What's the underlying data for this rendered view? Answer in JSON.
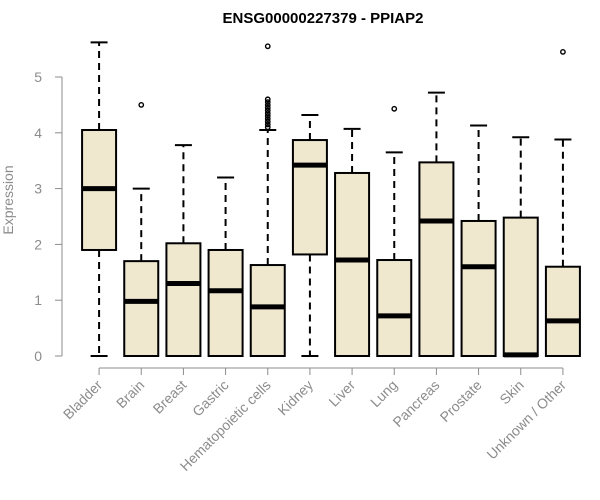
{
  "chart_data": {
    "type": "box",
    "title": "ENSG00000227379 - PPIAP2",
    "xlabel": "",
    "ylabel": "Expression",
    "ylim": [
      0,
      5.7
    ],
    "yticks": [
      0,
      1,
      2,
      3,
      4,
      5
    ],
    "grid": false,
    "categories": [
      "Bladder",
      "Brain",
      "Breast",
      "Gastric",
      "Hematopoietic cells",
      "Kidney",
      "Liver",
      "Lung",
      "Pancreas",
      "Prostate",
      "Skin",
      "Unknown / Other"
    ],
    "boxes": [
      {
        "min": 0,
        "q1": 1.9,
        "median": 3.0,
        "q3": 4.05,
        "max": 5.62,
        "outliers": []
      },
      {
        "min": 0,
        "q1": 0,
        "median": 0.98,
        "q3": 1.7,
        "max": 3.0,
        "outliers": [
          4.5
        ]
      },
      {
        "min": 0,
        "q1": 0,
        "median": 1.3,
        "q3": 2.02,
        "max": 3.78,
        "outliers": []
      },
      {
        "min": 0,
        "q1": 0,
        "median": 1.17,
        "q3": 1.9,
        "max": 3.2,
        "outliers": []
      },
      {
        "min": 0,
        "q1": 0,
        "median": 0.88,
        "q3": 1.63,
        "max": 4.05,
        "outliers": [
          4.1,
          4.15,
          4.2,
          4.25,
          4.3,
          4.35,
          4.4,
          4.45,
          4.5,
          4.55,
          4.6,
          5.55
        ]
      },
      {
        "min": 0,
        "q1": 1.82,
        "median": 3.42,
        "q3": 3.87,
        "max": 4.32,
        "outliers": []
      },
      {
        "min": 0,
        "q1": 0,
        "median": 1.72,
        "q3": 3.28,
        "max": 4.07,
        "outliers": []
      },
      {
        "min": 0,
        "q1": 0,
        "median": 0.72,
        "q3": 1.72,
        "max": 3.65,
        "outliers": [
          4.43
        ]
      },
      {
        "min": 0,
        "q1": 0,
        "median": 2.42,
        "q3": 3.47,
        "max": 4.72,
        "outliers": []
      },
      {
        "min": 0,
        "q1": 0,
        "median": 1.6,
        "q3": 2.42,
        "max": 4.13,
        "outliers": []
      },
      {
        "min": 0,
        "q1": 0,
        "median": 0.02,
        "q3": 2.48,
        "max": 3.92,
        "outliers": []
      },
      {
        "min": 0,
        "q1": 0,
        "median": 0.63,
        "q3": 1.6,
        "max": 3.88,
        "outliers": [
          5.45
        ]
      }
    ]
  }
}
